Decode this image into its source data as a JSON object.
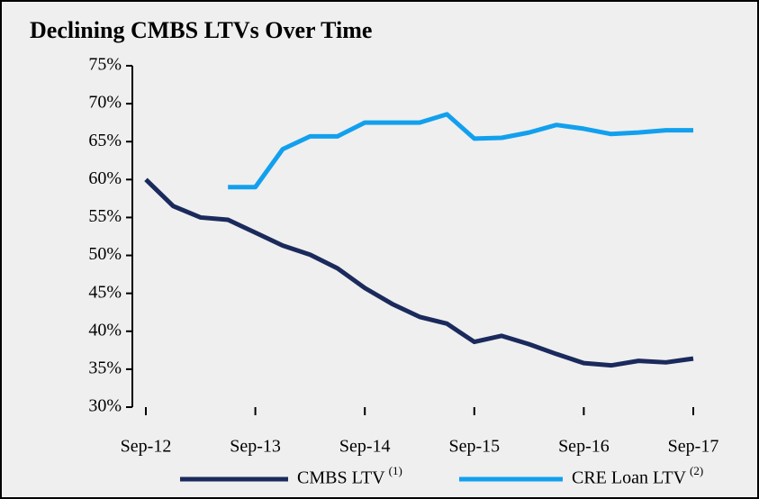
{
  "chart_data": {
    "type": "line",
    "title": "Declining CMBS LTVs Over Time",
    "categories": [
      "Sep-12",
      null,
      null,
      null,
      "Sep-13",
      null,
      null,
      null,
      "Sep-14",
      null,
      null,
      null,
      "Sep-15",
      null,
      null,
      null,
      "Sep-16",
      null,
      null,
      null,
      "Sep-17"
    ],
    "series": [
      {
        "name": "CMBS LTV",
        "note": "(1)",
        "color": "#1b2a5c",
        "values": [
          60,
          56.5,
          55,
          54.7,
          53,
          51.3,
          50.1,
          48.3,
          45.7,
          43.6,
          41.9,
          41,
          38.6,
          39.4,
          38.3,
          37,
          35.8,
          35.5,
          36.1,
          35.9,
          36.4
        ]
      },
      {
        "name": "CRE Loan LTV",
        "note": "(2)",
        "color": "#12a0ee",
        "values": [
          null,
          null,
          null,
          59,
          59,
          64,
          65.7,
          65.7,
          67.5,
          67.5,
          67.5,
          68.6,
          65.4,
          65.5,
          66.2,
          67.2,
          66.7,
          66,
          66.2,
          66.5,
          66.5
        ]
      }
    ],
    "ylim": [
      30,
      75
    ],
    "yticks": [
      {
        "value": 30,
        "label": "30%"
      },
      {
        "value": 35,
        "label": "35%"
      },
      {
        "value": 40,
        "label": "40%"
      },
      {
        "value": 45,
        "label": "45%"
      },
      {
        "value": 50,
        "label": "50%"
      },
      {
        "value": 55,
        "label": "55%"
      },
      {
        "value": 60,
        "label": "60%"
      },
      {
        "value": 65,
        "label": "65%"
      },
      {
        "value": 70,
        "label": "70%"
      },
      {
        "value": 75,
        "label": "75%"
      }
    ],
    "grid": false,
    "legend": "bottom"
  }
}
